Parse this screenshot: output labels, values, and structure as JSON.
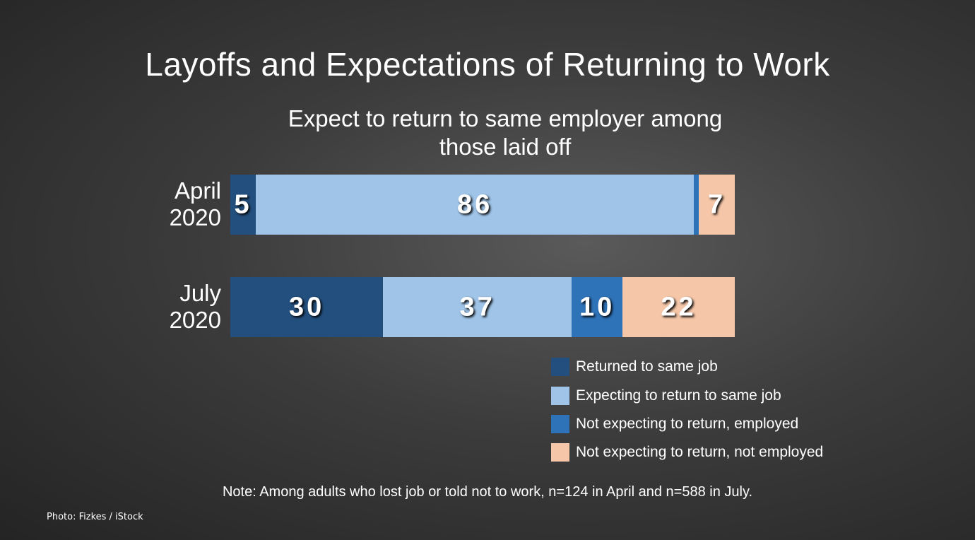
{
  "chart_data": {
    "type": "stacked-bar",
    "title": "Layoffs and Expectations of Returning to Work",
    "subtitle": "Expect to return to same employer among those laid off",
    "categories": [
      "April 2020",
      "July 2020"
    ],
    "series": [
      {
        "name": "Returned to same job",
        "color": "#234f7e",
        "values": [
          5,
          30
        ]
      },
      {
        "name": "Expecting to return to same job",
        "color": "#9fc4e8",
        "values": [
          86,
          37
        ]
      },
      {
        "name": "Not expecting to return, employed",
        "color": "#2e72b8",
        "values": [
          1,
          10
        ]
      },
      {
        "name": "Not expecting to return, not employed",
        "color": "#f5c6a8",
        "values": [
          7,
          22
        ]
      }
    ],
    "note": "Note: Among adults who lost job or told not to work, n=124 in April and n=588 in July.",
    "credit": "Photo: Fizkes / iStock"
  }
}
